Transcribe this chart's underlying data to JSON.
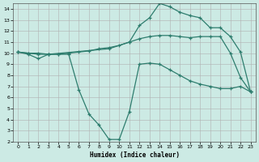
{
  "xlabel": "Humidex (Indice chaleur)",
  "bg_color": "#cceae4",
  "grid_color": "#b0b0b0",
  "line_color": "#2e7d6e",
  "xlim": [
    -0.5,
    23.5
  ],
  "ylim": [
    2,
    14.5
  ],
  "xticks": [
    0,
    1,
    2,
    3,
    4,
    5,
    6,
    7,
    8,
    9,
    10,
    11,
    12,
    13,
    14,
    15,
    16,
    17,
    18,
    19,
    20,
    21,
    22,
    23
  ],
  "yticks": [
    2,
    3,
    4,
    5,
    6,
    7,
    8,
    9,
    10,
    11,
    12,
    13,
    14
  ],
  "curve1_x": [
    0,
    1,
    2,
    3,
    4,
    5,
    6,
    7,
    8,
    9,
    10,
    11,
    12,
    13,
    14,
    15,
    16,
    17,
    18,
    19,
    20,
    21,
    22,
    23
  ],
  "curve1_y": [
    10.1,
    9.9,
    9.5,
    9.9,
    9.9,
    9.9,
    6.7,
    4.5,
    3.5,
    2.2,
    2.2,
    4.7,
    9.0,
    9.1,
    9.0,
    8.5,
    8.0,
    7.5,
    7.2,
    7.0,
    6.8,
    6.8,
    7.0,
    6.5
  ],
  "curve2_x": [
    0,
    1,
    2,
    3,
    4,
    5,
    6,
    7,
    8,
    9,
    10,
    11,
    12,
    13,
    14,
    15,
    16,
    17,
    18,
    19,
    20,
    21,
    22,
    23
  ],
  "curve2_y": [
    10.1,
    10.0,
    10.0,
    9.9,
    9.9,
    10.0,
    10.1,
    10.2,
    10.4,
    10.5,
    10.7,
    11.0,
    11.3,
    11.5,
    11.6,
    11.6,
    11.5,
    11.4,
    11.5,
    11.5,
    11.5,
    10.0,
    7.8,
    6.5
  ],
  "curve3_x": [
    0,
    1,
    2,
    3,
    9,
    11,
    12,
    13,
    14,
    15,
    16,
    17,
    18,
    19,
    20,
    21,
    22,
    23
  ],
  "curve3_y": [
    10.1,
    10.0,
    9.9,
    9.9,
    10.4,
    11.0,
    12.5,
    13.2,
    14.5,
    14.2,
    13.7,
    13.4,
    13.2,
    12.3,
    12.3,
    11.5,
    10.1,
    6.5
  ]
}
